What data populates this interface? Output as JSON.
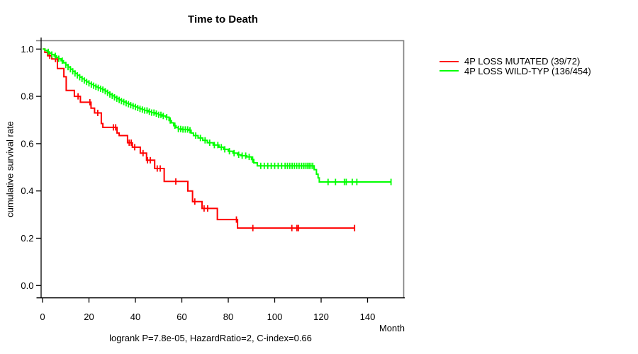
{
  "chart_data": {
    "type": "line",
    "subtype": "kaplan-meier-survival",
    "title": "Time to Death",
    "xlabel": "Month",
    "ylabel": "cumulative survival rate",
    "annotation": "logrank P=7.8e-05, HazardRatio=2, C-index=0.66",
    "xlim": [
      0,
      156
    ],
    "ylim": [
      0.0,
      1.0
    ],
    "x_ticks": [
      0,
      20,
      40,
      60,
      80,
      100,
      120,
      140
    ],
    "y_ticks": [
      "0.0",
      "0.2",
      "0.4",
      "0.6",
      "0.8",
      "1.0"
    ],
    "grid": false,
    "legend_position": "right-outside",
    "frame_color": "#808080",
    "axis_color": "#000000",
    "series": [
      {
        "name": "4P LOSS MUTATED (39/72)",
        "events": 39,
        "total": 72,
        "color": "#ff0000",
        "end_t": 134.4,
        "steps": [
          [
            0,
            1.0
          ],
          [
            1,
            0.986
          ],
          [
            2.2,
            0.972
          ],
          [
            4,
            0.958
          ],
          [
            6.4,
            0.918
          ],
          [
            9.2,
            0.883
          ],
          [
            10.2,
            0.825
          ],
          [
            13.7,
            0.8
          ],
          [
            16.3,
            0.775
          ],
          [
            20.9,
            0.75
          ],
          [
            22.4,
            0.73
          ],
          [
            25.3,
            0.685
          ],
          [
            26,
            0.669
          ],
          [
            32.1,
            0.645
          ],
          [
            33,
            0.634
          ],
          [
            36.6,
            0.604
          ],
          [
            38.7,
            0.585
          ],
          [
            42.1,
            0.56
          ],
          [
            44.8,
            0.53
          ],
          [
            48.3,
            0.495
          ],
          [
            52.4,
            0.44
          ],
          [
            62.6,
            0.4
          ],
          [
            64.6,
            0.355
          ],
          [
            68.7,
            0.326
          ],
          [
            75.3,
            0.279
          ],
          [
            84,
            0.243
          ]
        ],
        "censor_t": [
          3.1,
          5.6,
          15.3,
          20.4,
          23.8,
          30.5,
          31.5,
          37.3,
          38.2,
          39.7,
          43.3,
          45.2,
          46.4,
          49.4,
          50.7,
          57.4,
          65.6,
          69.6,
          71.1,
          83.5,
          90.6,
          107.4,
          109.6,
          110.2,
          134.4
        ]
      },
      {
        "name": "4P LOSS WILD-TYP (136/454)",
        "events": 136,
        "total": 454,
        "color": "#00ff00",
        "end_t": 150.1,
        "steps": [
          [
            0,
            1.0
          ],
          [
            1,
            0.994
          ],
          [
            2,
            0.988
          ],
          [
            3,
            0.983
          ],
          [
            4,
            0.977
          ],
          [
            5,
            0.971
          ],
          [
            6,
            0.965
          ],
          [
            7,
            0.959
          ],
          [
            8,
            0.951
          ],
          [
            9,
            0.942
          ],
          [
            10,
            0.933
          ],
          [
            11,
            0.924
          ],
          [
            12,
            0.915
          ],
          [
            13,
            0.906
          ],
          [
            14,
            0.897
          ],
          [
            15,
            0.889
          ],
          [
            16,
            0.881
          ],
          [
            17,
            0.874
          ],
          [
            18,
            0.867
          ],
          [
            19,
            0.861
          ],
          [
            20,
            0.855
          ],
          [
            21,
            0.85
          ],
          [
            22,
            0.845
          ],
          [
            23,
            0.84
          ],
          [
            24,
            0.836
          ],
          [
            25,
            0.832
          ],
          [
            26,
            0.828
          ],
          [
            27,
            0.822
          ],
          [
            28,
            0.815
          ],
          [
            29,
            0.808
          ],
          [
            30,
            0.802
          ],
          [
            31,
            0.796
          ],
          [
            32,
            0.79
          ],
          [
            33,
            0.785
          ],
          [
            34,
            0.78
          ],
          [
            35,
            0.776
          ],
          [
            36,
            0.771
          ],
          [
            37,
            0.767
          ],
          [
            38,
            0.763
          ],
          [
            39,
            0.759
          ],
          [
            40,
            0.755
          ],
          [
            41,
            0.751
          ],
          [
            42,
            0.747
          ],
          [
            43,
            0.744
          ],
          [
            44,
            0.74
          ],
          [
            45.5,
            0.735
          ],
          [
            47,
            0.731
          ],
          [
            48.5,
            0.727
          ],
          [
            50,
            0.722
          ],
          [
            51.5,
            0.717
          ],
          [
            53,
            0.712
          ],
          [
            54.5,
            0.698
          ],
          [
            55.5,
            0.688
          ],
          [
            56.5,
            0.676
          ],
          [
            57.5,
            0.668
          ],
          [
            58.5,
            0.662
          ],
          [
            60,
            0.66
          ],
          [
            63,
            0.657
          ],
          [
            64,
            0.645
          ],
          [
            65,
            0.634
          ],
          [
            67,
            0.624
          ],
          [
            69,
            0.614
          ],
          [
            71,
            0.604
          ],
          [
            73.5,
            0.594
          ],
          [
            76,
            0.585
          ],
          [
            78,
            0.576
          ],
          [
            80,
            0.568
          ],
          [
            82,
            0.56
          ],
          [
            84,
            0.553
          ],
          [
            85.5,
            0.549
          ],
          [
            88,
            0.544
          ],
          [
            90,
            0.533
          ],
          [
            91,
            0.519
          ],
          [
            92.5,
            0.506
          ],
          [
            117,
            0.49
          ],
          [
            118,
            0.471
          ],
          [
            118.7,
            0.455
          ],
          [
            119.2,
            0.438
          ]
        ],
        "censor_t": [
          2.5,
          4,
          5.5,
          7,
          8.5,
          10,
          11,
          12,
          13,
          14,
          15,
          16,
          17,
          18,
          19,
          20,
          21,
          22,
          23,
          24,
          25,
          26,
          27,
          28,
          29,
          30,
          31,
          32,
          33,
          34,
          35,
          36,
          37,
          38,
          39,
          40,
          41,
          42,
          43,
          44,
          45,
          46,
          47,
          48,
          49,
          50,
          51,
          52,
          53.5,
          55,
          57,
          58.5,
          59.5,
          60.5,
          61.5,
          62.5,
          63.5,
          66,
          68,
          70,
          72,
          74,
          75.5,
          77,
          78.5,
          80.5,
          82.5,
          84.5,
          86,
          87.5,
          89,
          90.5,
          94,
          95.5,
          97,
          98.5,
          100,
          101.5,
          103,
          104.5,
          105.5,
          106.5,
          107.5,
          108.5,
          109.5,
          110.5,
          111.5,
          112.3,
          113.1,
          114,
          114.8,
          115.6,
          116.4,
          123,
          126.2,
          130,
          130.8,
          133.4,
          135.4,
          150.1
        ]
      }
    ]
  }
}
